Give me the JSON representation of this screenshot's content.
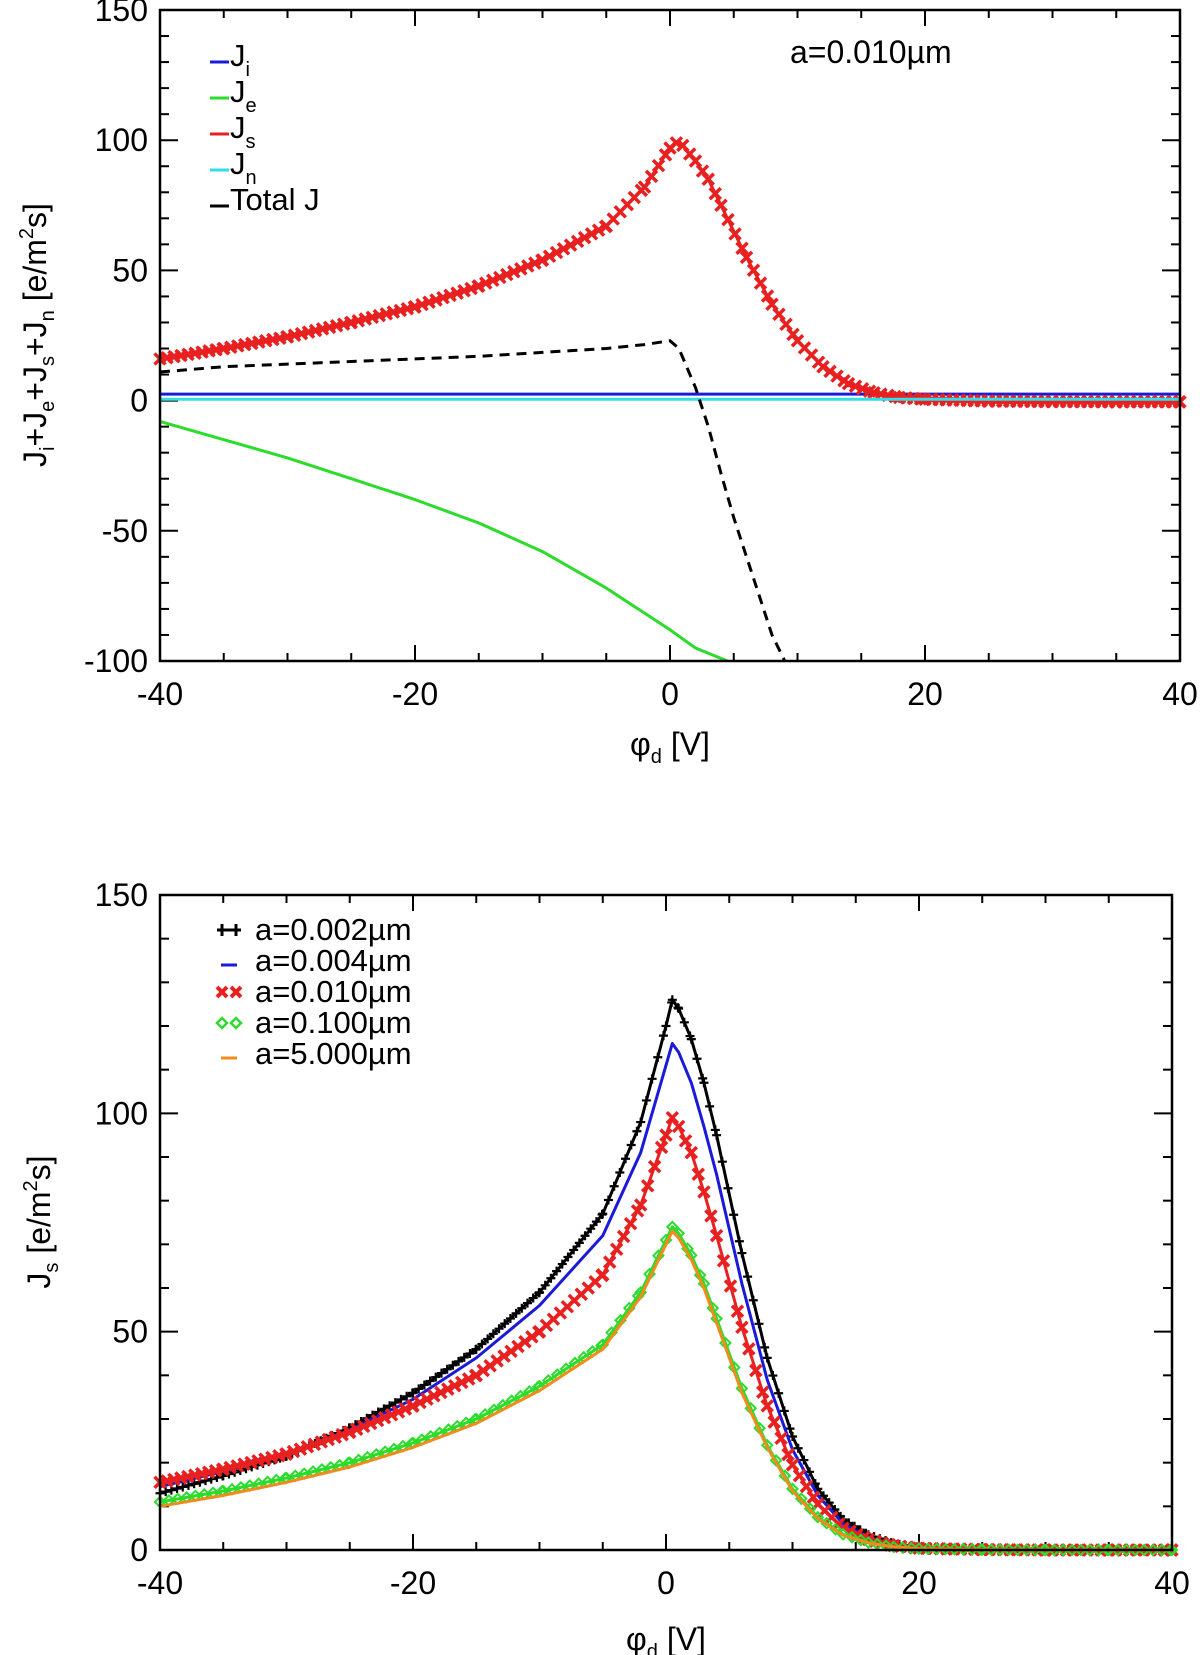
{
  "chart_data": [
    {
      "type": "line",
      "annotation": "a=0.010µm",
      "xlabel": {
        "main": "φ",
        "sub": "d",
        "rest": " [V]"
      },
      "ylabel": {
        "parts": [
          {
            "t": "J"
          },
          {
            "s": "i"
          },
          {
            "t": "+J"
          },
          {
            "s": "e"
          },
          {
            "t": "+J"
          },
          {
            "s": "s"
          },
          {
            "t": "+J"
          },
          {
            "s": "n"
          },
          {
            "t": " [e/m"
          },
          {
            "p": "2"
          },
          {
            "t": "s]"
          }
        ]
      },
      "xlim": [
        -40,
        40
      ],
      "ylim": [
        -100,
        150
      ],
      "xticks": [
        "-40",
        "-20",
        "0",
        "20",
        "40"
      ],
      "yticks": [
        "-100",
        "-50",
        "0",
        "50",
        "100",
        "150"
      ],
      "legend": [
        {
          "main": "J",
          "sub": "i",
          "color": "#1a1ad8"
        },
        {
          "main": "J",
          "sub": "e",
          "color": "#2bdc2b"
        },
        {
          "main": "J",
          "sub": "s",
          "color": "#e82020"
        },
        {
          "main": "J",
          "sub": "n",
          "color": "#33dde8"
        },
        {
          "main": "Total J",
          "sub": "",
          "color": "#000000"
        }
      ],
      "series": [
        {
          "name": "Ji",
          "color": "#1a1ad8",
          "style": "solid",
          "x": [
            -40,
            0,
            40
          ],
          "y": [
            2.5,
            2.5,
            2.5
          ]
        },
        {
          "name": "Je",
          "color": "#2bdc2b",
          "style": "solid",
          "x": [
            -40,
            -35,
            -30,
            -25,
            -20,
            -15,
            -10,
            -5,
            0,
            2,
            4.5
          ],
          "y": [
            -8,
            -15,
            -22,
            -30,
            -38,
            -47,
            -58,
            -72,
            -88,
            -95,
            -100
          ]
        },
        {
          "name": "Js",
          "color": "#e82020",
          "style": "xmarker",
          "x": [
            -40,
            -35,
            -30,
            -25,
            -20,
            -15,
            -10,
            -5,
            -2,
            0,
            0.5,
            1,
            2,
            3,
            4,
            6,
            8,
            10,
            12,
            14,
            16,
            18,
            20,
            25,
            30,
            35,
            40
          ],
          "y": [
            16,
            20,
            24.5,
            30,
            36,
            44,
            54,
            67,
            82,
            97,
            99,
            98,
            92,
            85,
            75,
            55,
            37,
            23,
            13,
            6.5,
            3,
            1.2,
            0.5,
            -0.2,
            -0.4,
            -0.5,
            -0.5
          ]
        },
        {
          "name": "Jn",
          "color": "#33dde8",
          "style": "solid",
          "x": [
            -40,
            0,
            40
          ],
          "y": [
            0.5,
            0.5,
            0.5
          ]
        },
        {
          "name": "Total J",
          "color": "#000000",
          "style": "dashed",
          "x": [
            -40,
            -35,
            -30,
            -25,
            -20,
            -15,
            -10,
            -5,
            -2,
            0,
            0.7,
            2,
            3,
            4,
            5,
            6,
            7,
            8,
            9
          ],
          "y": [
            11,
            13,
            14,
            15,
            16,
            17,
            18.5,
            20,
            21.5,
            23,
            20,
            5,
            -10,
            -28,
            -45,
            -60,
            -75,
            -90,
            -100
          ]
        }
      ]
    },
    {
      "type": "line",
      "xlabel": {
        "main": "φ",
        "sub": "d",
        "rest": " [V]"
      },
      "ylabel": {
        "parts": [
          {
            "t": "J"
          },
          {
            "s": "s"
          },
          {
            "t": " [e/m"
          },
          {
            "p": "2"
          },
          {
            "t": "s]"
          }
        ]
      },
      "xlim": [
        -40,
        40
      ],
      "ylim": [
        0,
        150
      ],
      "xticks": [
        "-40",
        "-20",
        "0",
        "20",
        "40"
      ],
      "yticks": [
        "0",
        "50",
        "100",
        "150"
      ],
      "legend": [
        {
          "label": "a=0.002µm",
          "color": "#000000",
          "marker": "plus"
        },
        {
          "label": "a=0.004µm",
          "color": "#1a1ad8",
          "marker": "dash"
        },
        {
          "label": "a=0.010µm",
          "color": "#e82020",
          "marker": "x"
        },
        {
          "label": "a=0.100µm",
          "color": "#2bdc2b",
          "marker": "diamond"
        },
        {
          "label": "a=5.000µm",
          "color": "#f08c1e",
          "marker": "dash"
        }
      ],
      "series": [
        {
          "name": "a=0.002µm",
          "color": "#000000",
          "style": "plus",
          "peak": 126,
          "x": [
            -40,
            -35,
            -30,
            -25,
            -20,
            -15,
            -10,
            -5,
            -2,
            0,
            0.5,
            1,
            2,
            3,
            4,
            6,
            8,
            10,
            12,
            14,
            16,
            18,
            20,
            25,
            30,
            35,
            40
          ],
          "y": [
            13,
            17,
            21.5,
            28,
            36,
            46,
            59,
            77,
            98,
            120,
            126,
            124,
            117,
            107,
            95,
            68,
            44,
            26,
            14,
            7,
            3.5,
            1.5,
            0.6,
            0.1,
            0,
            0,
            0
          ]
        },
        {
          "name": "a=0.004µm",
          "color": "#1a1ad8",
          "style": "solid",
          "peak": 116,
          "x": [
            -40,
            -35,
            -30,
            -25,
            -20,
            -15,
            -10,
            -5,
            -2,
            0,
            0.5,
            1,
            2,
            3,
            4,
            6,
            8,
            10,
            12,
            14,
            16,
            18,
            20,
            25,
            30,
            35,
            40
          ],
          "y": [
            14.5,
            18,
            22,
            27.5,
            34.5,
            44,
            56,
            72,
            91,
            111,
            116,
            114,
            107,
            97,
            86,
            61,
            39,
            23,
            12.5,
            6,
            3,
            1.2,
            0.5,
            0.1,
            0,
            0,
            0
          ]
        },
        {
          "name": "a=0.010µm",
          "color": "#e82020",
          "style": "xmarker",
          "peak": 99,
          "x": [
            -40,
            -35,
            -30,
            -25,
            -20,
            -15,
            -10,
            -5,
            -2,
            0,
            0.5,
            1,
            2,
            3,
            4,
            6,
            8,
            10,
            12,
            14,
            16,
            18,
            20,
            25,
            30,
            35,
            40
          ],
          "y": [
            15.5,
            18.5,
            22,
            27,
            33,
            40,
            50,
            63,
            79,
            95,
            99,
            97,
            91,
            82,
            72,
            51,
            33,
            19.5,
            10.5,
            5,
            2.4,
            1,
            0.4,
            0.1,
            0,
            0,
            0
          ]
        },
        {
          "name": "a=0.100µm",
          "color": "#2bdc2b",
          "style": "diamond",
          "peak": 74,
          "x": [
            -40,
            -35,
            -30,
            -25,
            -20,
            -15,
            -10,
            -5,
            -2,
            0,
            0.5,
            1,
            2,
            3,
            4,
            6,
            8,
            10,
            12,
            14,
            16,
            18,
            20,
            25,
            30,
            35,
            40
          ],
          "y": [
            11,
            13.5,
            16.5,
            20,
            24.5,
            30,
            37.5,
            47,
            59,
            71,
            74,
            72.5,
            67.5,
            61,
            53,
            37,
            24,
            14,
            7.5,
            3.6,
            1.7,
            0.7,
            0.3,
            0.1,
            0,
            0,
            0
          ]
        },
        {
          "name": "a=5.000µm",
          "color": "#f08c1e",
          "style": "solid",
          "peak": 73,
          "x": [
            -40,
            -35,
            -30,
            -25,
            -20,
            -15,
            -10,
            -5,
            -2,
            0,
            0.5,
            1,
            2,
            3,
            4,
            6,
            8,
            10,
            12,
            14,
            16,
            18,
            20,
            25,
            30,
            35,
            40
          ],
          "y": [
            10,
            12.5,
            15.5,
            19,
            23.5,
            29,
            36.5,
            46,
            58,
            70,
            73,
            71.5,
            66.5,
            60,
            52,
            36,
            23.5,
            13.5,
            7.2,
            3.4,
            1.6,
            0.7,
            0.3,
            0.1,
            0,
            0,
            0
          ]
        }
      ]
    }
  ]
}
